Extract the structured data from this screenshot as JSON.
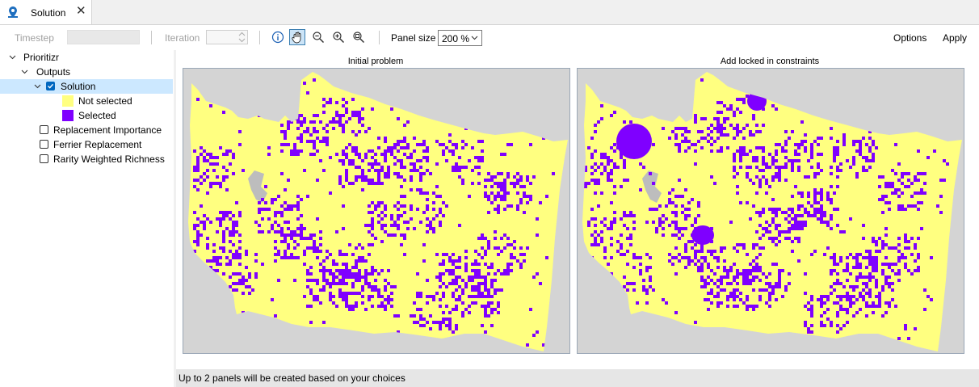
{
  "tab": {
    "title": "Solution",
    "close": "✕",
    "icon": "map-pin-user-icon"
  },
  "toolbar": {
    "timestep_label": "Timestep",
    "iteration_label": "Iteration",
    "panel_size_label": "Panel size",
    "panel_size_value": "200 %",
    "options_label": "Options",
    "apply_label": "Apply",
    "tools": [
      "info-icon",
      "pan-hand-icon",
      "zoom-out-icon",
      "zoom-in-icon",
      "zoom-extent-icon"
    ],
    "active_tool": "pan-hand-icon"
  },
  "tree": {
    "root": "Prioritizr",
    "outputs": "Outputs",
    "solution": "Solution",
    "legend": [
      {
        "label": "Not selected",
        "color": "#ffff80"
      },
      {
        "label": "Selected",
        "color": "#7f00ff"
      }
    ],
    "layers": [
      "Replacement Importance",
      "Ferrier Replacement",
      "Rarity Weighted Richness"
    ]
  },
  "panels": [
    {
      "title": "Initial problem"
    },
    {
      "title": "Add locked in constraints"
    }
  ],
  "colors": {
    "not_selected": "#ffff80",
    "selected": "#7f00ff",
    "map_background": "#d4d4d4",
    "water": "#bdbdbd"
  },
  "status": {
    "text": "Up to 2 panels will be created based on your choices"
  }
}
